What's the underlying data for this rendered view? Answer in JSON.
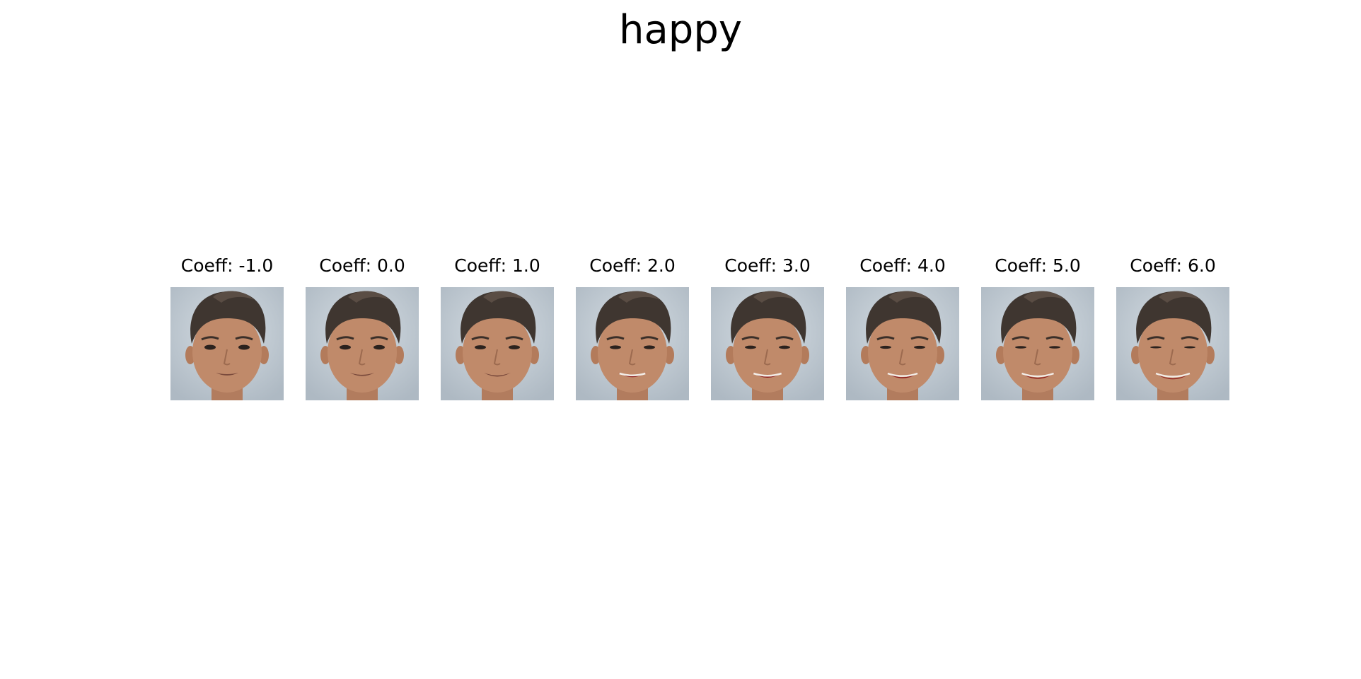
{
  "figure": {
    "title": "happy"
  },
  "panels": [
    {
      "title": "Coeff: -1.0",
      "coefficient": -1.0
    },
    {
      "title": "Coeff: 0.0",
      "coefficient": 0.0
    },
    {
      "title": "Coeff: 1.0",
      "coefficient": 1.0
    },
    {
      "title": "Coeff: 2.0",
      "coefficient": 2.0
    },
    {
      "title": "Coeff: 3.0",
      "coefficient": 3.0
    },
    {
      "title": "Coeff: 4.0",
      "coefficient": 4.0
    },
    {
      "title": "Coeff: 5.0",
      "coefficient": 5.0
    },
    {
      "title": "Coeff: 6.0",
      "coefficient": 6.0
    }
  ],
  "colors": {
    "background": "#ffffff",
    "photo_backdrop": "#aeb9c3",
    "skin": "#c08a6a",
    "hair": "#3f3630",
    "lips": "#8b1a1a"
  }
}
